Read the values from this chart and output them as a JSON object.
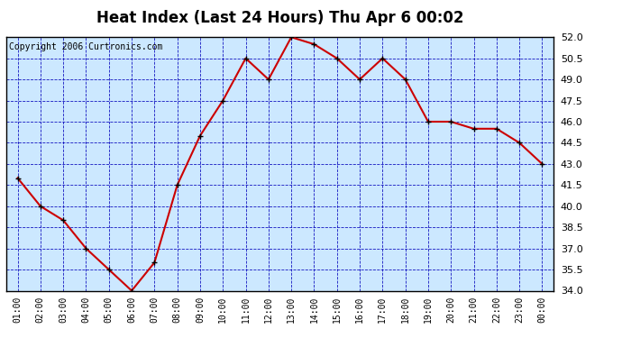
{
  "title": "Heat Index (Last 24 Hours) Thu Apr 6 00:02",
  "copyright": "Copyright 2006 Curtronics.com",
  "x_labels": [
    "01:00",
    "02:00",
    "03:00",
    "04:00",
    "05:00",
    "06:00",
    "07:00",
    "08:00",
    "09:00",
    "10:00",
    "11:00",
    "12:00",
    "13:00",
    "14:00",
    "15:00",
    "16:00",
    "17:00",
    "18:00",
    "19:00",
    "20:00",
    "21:00",
    "22:00",
    "23:00",
    "00:00"
  ],
  "y_values": [
    42.0,
    40.0,
    39.0,
    37.0,
    35.5,
    34.0,
    36.0,
    41.5,
    45.0,
    47.5,
    50.5,
    49.0,
    52.0,
    51.5,
    50.5,
    49.0,
    50.5,
    49.0,
    46.0,
    46.0,
    45.5,
    45.5,
    44.5,
    43.0
  ],
  "ylim_min": 34.0,
  "ylim_max": 52.0,
  "y_ticks": [
    34.0,
    35.5,
    37.0,
    38.5,
    40.0,
    41.5,
    43.0,
    44.5,
    46.0,
    47.5,
    49.0,
    50.5,
    52.0
  ],
  "line_color": "#cc0000",
  "marker_color": "#000000",
  "bg_color": "#cce8ff",
  "fig_bg_color": "#ffffff",
  "grid_color": "#0000bb",
  "title_fontsize": 12,
  "copyright_fontsize": 7
}
